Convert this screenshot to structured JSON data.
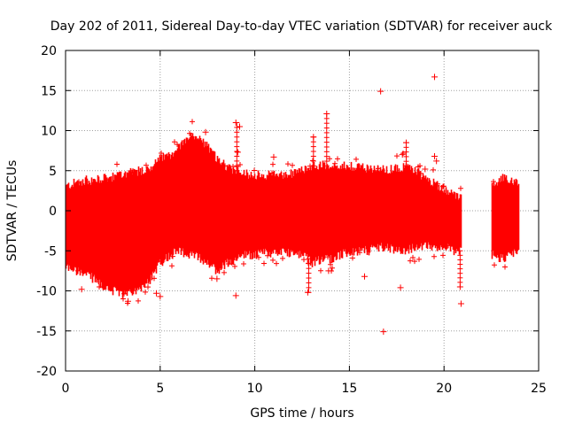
{
  "chart_data": {
    "type": "scatter",
    "title": "Day 202 of 2011, Sidereal Day-to-day VTEC variation (SDTVAR) for receiver auck",
    "xlabel": "GPS time / hours",
    "ylabel": "SDTVAR / TECUs",
    "xlim": [
      0,
      25
    ],
    "ylim": [
      -20,
      20
    ],
    "xticks": [
      0,
      5,
      10,
      15,
      20,
      25
    ],
    "yticks": [
      -20,
      -15,
      -10,
      -5,
      0,
      5,
      10,
      15,
      20
    ],
    "grid": true,
    "marker": "+",
    "color": "#ff0000",
    "envelope": {
      "x": [
        0.0,
        0.5,
        1.0,
        1.5,
        2.0,
        2.5,
        3.0,
        3.5,
        4.0,
        4.5,
        5.0,
        5.5,
        6.0,
        6.5,
        7.0,
        7.5,
        8.0,
        8.5,
        9.0,
        9.5,
        10.0,
        10.5,
        11.0,
        11.5,
        12.0,
        12.5,
        13.0,
        13.5,
        14.0,
        14.5,
        15.0,
        15.5,
        16.0,
        16.5,
        17.0,
        17.5,
        18.0,
        18.5,
        19.0,
        19.5,
        20.0,
        20.5,
        20.9
      ],
      "upper": [
        3.0,
        3.5,
        3.8,
        3.8,
        4.0,
        4.2,
        4.5,
        4.8,
        5.0,
        5.5,
        6.5,
        7.0,
        8.0,
        9.2,
        9.0,
        8.0,
        6.5,
        5.5,
        5.0,
        4.6,
        4.5,
        4.4,
        4.5,
        4.6,
        4.6,
        5.0,
        5.5,
        5.7,
        5.8,
        5.6,
        5.5,
        5.5,
        5.3,
        5.2,
        5.0,
        5.4,
        5.5,
        5.0,
        4.0,
        3.5,
        2.5,
        2.0,
        1.5
      ],
      "lower": [
        -7.0,
        -7.5,
        -8.0,
        -8.5,
        -9.5,
        -10.0,
        -10.5,
        -10.3,
        -9.5,
        -8.5,
        -6.5,
        -5.5,
        -5.0,
        -5.5,
        -5.8,
        -6.5,
        -7.5,
        -6.5,
        -6.0,
        -5.5,
        -5.5,
        -5.3,
        -5.3,
        -5.2,
        -5.2,
        -5.5,
        -6.5,
        -6.0,
        -6.0,
        -5.5,
        -5.2,
        -5.0,
        -5.0,
        -4.5,
        -4.5,
        -5.0,
        -5.0,
        -4.5,
        -4.5,
        -4.5,
        -4.5,
        -5.0,
        -5.0
      ]
    },
    "envelope2": {
      "x": [
        22.5,
        23.0,
        23.5,
        23.9
      ],
      "upper": [
        3.0,
        4.0,
        4.0,
        3.5
      ],
      "lower": [
        -5.5,
        -6.0,
        -5.5,
        -5.0
      ]
    },
    "gap": [
      21.0,
      22.5
    ],
    "outliers": [
      {
        "x": 0.85,
        "y": -9.8
      },
      {
        "x": 3.3,
        "y": -11.3
      },
      {
        "x": 4.8,
        "y": -10.3
      },
      {
        "x": 5.0,
        "y": -10.7
      },
      {
        "x": 5.1,
        "y": -6.3
      },
      {
        "x": 7.4,
        "y": 9.8
      },
      {
        "x": 8.0,
        "y": -8.5
      },
      {
        "x": 9.0,
        "y": -10.6
      },
      {
        "x": 9.0,
        "y": 11.0
      },
      {
        "x": 9.2,
        "y": 10.5
      },
      {
        "x": 9.1,
        "y": 7.3
      },
      {
        "x": 11.0,
        "y": 6.7
      },
      {
        "x": 12.8,
        "y": -10.2
      },
      {
        "x": 13.1,
        "y": 9.2
      },
      {
        "x": 13.8,
        "y": 12.1
      },
      {
        "x": 13.9,
        "y": -7.5
      },
      {
        "x": 15.8,
        "y": -8.2
      },
      {
        "x": 16.65,
        "y": 14.9
      },
      {
        "x": 16.8,
        "y": -15.1
      },
      {
        "x": 17.7,
        "y": -9.6
      },
      {
        "x": 17.8,
        "y": 7.0
      },
      {
        "x": 18.0,
        "y": 8.5
      },
      {
        "x": 19.5,
        "y": 16.7
      },
      {
        "x": 19.5,
        "y": 6.8
      },
      {
        "x": 19.6,
        "y": 6.2
      },
      {
        "x": 19.0,
        "y": 5.2
      },
      {
        "x": 20.85,
        "y": -9.5
      },
      {
        "x": 20.9,
        "y": -11.6
      }
    ]
  }
}
